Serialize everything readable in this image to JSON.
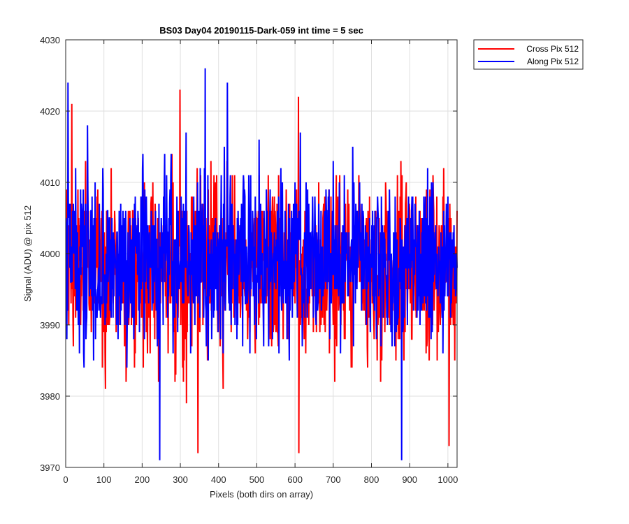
{
  "chart_data": {
    "type": "line",
    "title": "BS03 Day04 20190115-Dark-059 int time = 5 sec",
    "xlabel": "Pixels (both dirs on array)",
    "ylabel": "Signal (ADU) @ pix 512",
    "xlim": [
      0,
      1024
    ],
    "ylim": [
      3970,
      4030
    ],
    "xticks": [
      0,
      100,
      200,
      300,
      400,
      500,
      600,
      700,
      800,
      900,
      1000
    ],
    "yticks": [
      3970,
      3980,
      3990,
      4000,
      4010,
      4020,
      4030
    ],
    "grid": true,
    "legend_position": "outside-top-right",
    "series": [
      {
        "name": "Cross Pix 512",
        "color": "#ff0000",
        "line_width": 2,
        "n_points": 1024,
        "mean": 3998,
        "std": 6,
        "min": 3972,
        "max": 4023,
        "peaks": [
          {
            "x": 15,
            "y": 4021
          },
          {
            "x": 298,
            "y": 4023
          },
          {
            "x": 608,
            "y": 4022
          }
        ],
        "troughs": [
          {
            "x": 345,
            "y": 3972
          },
          {
            "x": 609,
            "y": 3972
          },
          {
            "x": 1002,
            "y": 3973
          }
        ]
      },
      {
        "name": "Along Pix 512",
        "color": "#0000ff",
        "line_width": 2,
        "n_points": 1024,
        "mean": 3999,
        "std": 6,
        "min": 3971,
        "max": 4026,
        "peaks": [
          {
            "x": 5,
            "y": 4024
          },
          {
            "x": 364,
            "y": 4026
          },
          {
            "x": 422,
            "y": 4024
          }
        ],
        "troughs": [
          {
            "x": 245,
            "y": 3971
          },
          {
            "x": 878,
            "y": 3971
          }
        ]
      }
    ]
  }
}
